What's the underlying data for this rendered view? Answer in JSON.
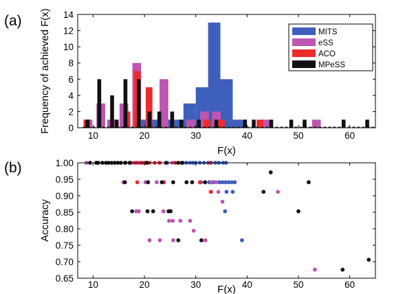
{
  "chart_data": [
    {
      "panel": "(a)",
      "type": "bar",
      "xlabel": "F(x)",
      "ylabel": "Frequency of achieved F(x)",
      "xlim": [
        7,
        65
      ],
      "ylim": [
        0,
        14
      ],
      "xticks": [
        "10",
        "20",
        "30",
        "40",
        "50",
        "60"
      ],
      "yticks": [
        "0",
        "2",
        "4",
        "6",
        "8",
        "10",
        "12",
        "14"
      ],
      "legend_position": "top-right",
      "series": [
        {
          "name": "MITS",
          "color": "#3f5fbd",
          "bar_width": 2.4,
          "points": [
            [
              19.8,
              1
            ],
            [
              22.2,
              1
            ],
            [
              24.6,
              1
            ],
            [
              27.0,
              1
            ],
            [
              28.8,
              3
            ],
            [
              31.2,
              5
            ],
            [
              33.6,
              13
            ],
            [
              36.0,
              6
            ],
            [
              38.4,
              1
            ]
          ]
        },
        {
          "name": "eSS",
          "color": "#bd55b1",
          "bar_width": 1.7,
          "points": [
            [
              9.0,
              1
            ],
            [
              11.5,
              3
            ],
            [
              13.6,
              1
            ],
            [
              16.0,
              3
            ],
            [
              18.5,
              8
            ],
            [
              23.8,
              6
            ],
            [
              29.0,
              1
            ],
            [
              31.7,
              2
            ],
            [
              34.0,
              2
            ],
            [
              43.6,
              1
            ],
            [
              53.5,
              1
            ]
          ]
        },
        {
          "name": "ACO",
          "color": "#ee2b2b",
          "bar_width": 1.3,
          "points": [
            [
              8.8,
              1
            ],
            [
              16.6,
              2
            ],
            [
              18.6,
              7
            ],
            [
              20.9,
              5
            ],
            [
              32.2,
              1
            ],
            [
              35.0,
              1
            ],
            [
              42.5,
              1
            ]
          ]
        },
        {
          "name": "MPeSS",
          "color": "#111111",
          "bar_width": 0.75,
          "points": [
            [
              8.9,
              1
            ],
            [
              11.2,
              6
            ],
            [
              13.7,
              4
            ],
            [
              14.6,
              1
            ],
            [
              16.3,
              6
            ],
            [
              18.9,
              6
            ],
            [
              21.0,
              2
            ],
            [
              22.9,
              2
            ],
            [
              25.4,
              2
            ],
            [
              27.2,
              1
            ],
            [
              30.6,
              1
            ],
            [
              34.0,
              1
            ],
            [
              39.6,
              1
            ],
            [
              41.3,
              1
            ],
            [
              44.7,
              1
            ],
            [
              48.6,
              1
            ],
            [
              51.2,
              1
            ],
            [
              58.8,
              1
            ],
            [
              63.4,
              1
            ]
          ]
        }
      ]
    },
    {
      "panel": "(b)",
      "type": "scatter",
      "xlabel": "F(x)",
      "ylabel": "Accuracy",
      "xlim": [
        7,
        65
      ],
      "ylim": [
        0.65,
        1.0
      ],
      "xticks": [
        "10",
        "20",
        "30",
        "40",
        "50",
        "60"
      ],
      "yticks": [
        "0.65",
        "0.70",
        "0.75",
        "0.80",
        "0.85",
        "0.90",
        "0.95",
        "1.00"
      ],
      "series": [
        {
          "name": "MITS",
          "color": "#3f5fbd",
          "points": [
            [
              27.5,
              1.0
            ],
            [
              28.2,
              1.0
            ],
            [
              28.9,
              1.0
            ],
            [
              29.5,
              1.0
            ],
            [
              30.0,
              1.0
            ],
            [
              30.8,
              1.0
            ],
            [
              31.6,
              1.0
            ],
            [
              32.4,
              1.0
            ],
            [
              33.0,
              1.0
            ],
            [
              33.8,
              1.0
            ],
            [
              34.5,
              1.0
            ],
            [
              35.3,
              1.0
            ],
            [
              35.9,
              1.0
            ],
            [
              31.0,
              0.941
            ],
            [
              31.8,
              0.941
            ],
            [
              32.6,
              0.941
            ],
            [
              33.3,
              0.941
            ],
            [
              33.9,
              0.941
            ],
            [
              34.6,
              0.941
            ],
            [
              35.2,
              0.941
            ],
            [
              35.8,
              0.941
            ],
            [
              36.4,
              0.941
            ],
            [
              37.0,
              0.941
            ],
            [
              37.6,
              0.941
            ],
            [
              36.0,
              0.912
            ],
            [
              37.2,
              0.912
            ],
            [
              35.7,
              0.853
            ],
            [
              39.0,
              0.765
            ]
          ]
        },
        {
          "name": "eSS",
          "color": "#bd55b1",
          "points": [
            [
              8.7,
              1.0
            ],
            [
              16.1,
              1.0
            ],
            [
              18.0,
              1.0
            ],
            [
              18.8,
              1.0
            ],
            [
              19.6,
              1.0
            ],
            [
              20.3,
              1.0
            ],
            [
              23.0,
              1.0
            ],
            [
              24.5,
              1.0
            ],
            [
              25.4,
              1.0
            ],
            [
              15.9,
              0.941
            ],
            [
              20.2,
              0.941
            ],
            [
              22.4,
              0.941
            ],
            [
              33.0,
              0.941
            ],
            [
              34.0,
              0.941
            ],
            [
              32.9,
              0.912
            ],
            [
              34.4,
              0.912
            ],
            [
              35.2,
              0.882
            ],
            [
              46.0,
              0.912
            ],
            [
              18.4,
              0.853
            ],
            [
              18.9,
              0.853
            ],
            [
              23.7,
              0.853
            ],
            [
              24.8,
              0.824
            ],
            [
              25.5,
              0.824
            ],
            [
              27.0,
              0.824
            ],
            [
              28.9,
              0.824
            ],
            [
              29.6,
              0.794
            ],
            [
              21.0,
              0.765
            ],
            [
              23.0,
              0.765
            ],
            [
              25.6,
              0.765
            ],
            [
              31.9,
              0.765
            ],
            [
              53.2,
              0.676
            ]
          ]
        },
        {
          "name": "ACO",
          "color": "#ee2b2b",
          "points": [
            [
              17.4,
              1.0
            ],
            [
              18.4,
              1.0
            ],
            [
              19.3,
              1.0
            ],
            [
              20.0,
              1.0
            ],
            [
              21.0,
              1.0
            ],
            [
              22.0,
              1.0
            ],
            [
              22.9,
              1.0
            ],
            [
              26.0,
              1.0
            ],
            [
              32.8,
              1.0
            ],
            [
              18.6,
              0.941
            ],
            [
              23.8,
              0.941
            ],
            [
              30.8,
              0.941
            ],
            [
              33.0,
              0.912
            ]
          ]
        },
        {
          "name": "MPeSS",
          "color": "#111111",
          "points": [
            [
              9.4,
              1.0
            ],
            [
              10.6,
              1.0
            ],
            [
              11.0,
              1.0
            ],
            [
              11.8,
              1.0
            ],
            [
              12.5,
              1.0
            ],
            [
              13.0,
              1.0
            ],
            [
              13.6,
              1.0
            ],
            [
              14.2,
              1.0
            ],
            [
              14.8,
              1.0
            ],
            [
              15.4,
              1.0
            ],
            [
              16.3,
              1.0
            ],
            [
              17.1,
              1.0
            ],
            [
              20.5,
              1.0
            ],
            [
              24.2,
              1.0
            ],
            [
              26.6,
              1.0
            ],
            [
              27.3,
              1.0
            ],
            [
              16.2,
              0.941
            ],
            [
              20.7,
              0.941
            ],
            [
              23.4,
              0.941
            ],
            [
              25.6,
              0.941
            ],
            [
              28.2,
              0.941
            ],
            [
              29.3,
              0.941
            ],
            [
              31.8,
              0.941
            ],
            [
              52.0,
              0.941
            ],
            [
              44.6,
              0.971
            ],
            [
              43.2,
              0.912
            ],
            [
              17.6,
              0.853
            ],
            [
              20.6,
              0.853
            ],
            [
              21.7,
              0.853
            ],
            [
              24.7,
              0.853
            ],
            [
              25.1,
              0.853
            ],
            [
              50.0,
              0.853
            ],
            [
              26.6,
              0.765
            ],
            [
              31.1,
              0.765
            ],
            [
              58.6,
              0.676
            ],
            [
              63.7,
              0.706
            ]
          ]
        }
      ]
    }
  ]
}
